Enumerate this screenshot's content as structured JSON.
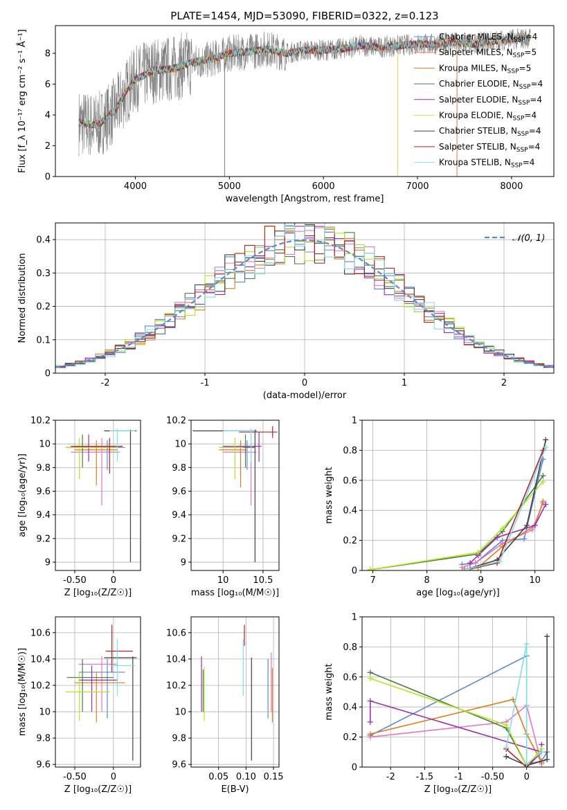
{
  "figure_title": "PLATE=1454, MJD=53090, FIBERID=0322, z=0.123",
  "colors": {
    "Chabrier MILES": "#5b87d6",
    "Salpeter MILES": "#e8734a",
    "Kroupa MILES": "#e07b1a",
    "Chabrier ELODIE": "#4a7a4a",
    "Salpeter ELODIE": "#9b2fae",
    "Kroupa ELODIE": "#d4e157",
    "Chabrier STELIB": "#404040",
    "Salpeter STELIB": "#b22222",
    "Kroupa STELIB": "#80deea",
    "extra_pink": "#e377c2",
    "extra_lime": "#b5e61d",
    "data": "#808080"
  },
  "chart_data": [
    {
      "id": "spectrum",
      "type": "line",
      "title": "PLATE=1454, MJD=53090, FIBERID=0322, z=0.123",
      "xlabel": "wavelength [Angstrom, rest frame]",
      "ylabel": "Flux [f_λ 10⁻¹⁷ erg cm⁻² s⁻¹ Å⁻¹]",
      "xlim": [
        3150,
        8450
      ],
      "ylim": [
        0,
        9.8
      ],
      "xticks": [
        4000,
        5000,
        6000,
        7000,
        8000
      ],
      "yticks": [
        0,
        2,
        4,
        6,
        8
      ],
      "legend_position": "top-right",
      "legend": [
        "Chabrier MILES, N_SSP=4",
        "Salpeter MILES, N_SSP=5",
        "Kroupa MILES, N_SSP=5",
        "Chabrier ELODIE, N_SSP=4",
        "Salpeter ELODIE, N_SSP=4",
        "Kroupa ELODIE, N_SSP=4",
        "Chabrier STELIB, N_SSP=4",
        "Salpeter STELIB, N_SSP=4",
        "Kroupa STELIB, N_SSP=4"
      ],
      "continuum": {
        "x": [
          3400,
          3600,
          3800,
          3900,
          4000,
          4200,
          4400,
          4600,
          4800,
          5000,
          5200,
          5400,
          5600,
          5800,
          6000,
          6200,
          6400,
          6600,
          6800,
          7000,
          7200,
          7400,
          7600,
          7800,
          8000,
          8200
        ],
        "y": [
          3.5,
          3.3,
          4.4,
          5.5,
          6.3,
          6.9,
          7.0,
          7.4,
          7.6,
          8.0,
          8.1,
          8.3,
          8.0,
          8.2,
          8.2,
          8.3,
          8.5,
          8.4,
          8.5,
          8.6,
          8.6,
          8.7,
          8.6,
          8.8,
          8.9,
          9.0
        ]
      }
    },
    {
      "id": "residuals",
      "type": "step",
      "xlabel": "(data-model)/error",
      "ylabel": "Normed distribution",
      "xlim": [
        -2.5,
        2.5
      ],
      "ylim": [
        0,
        0.45
      ],
      "xticks": [
        -2,
        -1,
        0,
        1,
        2
      ],
      "yticks": [
        0.0,
        0.1,
        0.2,
        0.3,
        0.4
      ],
      "legend": [
        "𝒩(0, 1)"
      ],
      "legend_position": "top-right",
      "gaussian": {
        "mean": 0,
        "sigma": 1
      },
      "bins": [
        -2.5,
        2.5,
        50
      ]
    },
    {
      "id": "age_vs_Z",
      "type": "errorbar",
      "xlabel": "Z [log₁₀(Z/Z☉)]",
      "ylabel": "age  [log₁₀(age/yr)]",
      "xlim": [
        -0.75,
        0.35
      ],
      "ylim": [
        8.93,
        10.2
      ],
      "xticks": [
        -0.5,
        0.0
      ],
      "yticks": [
        9.0,
        9.2,
        9.4,
        9.6,
        9.8,
        10.0,
        10.2
      ],
      "points": [
        {
          "x": -0.08,
          "y": 9.97,
          "xlo": -0.62,
          "xhi": 0.15,
          "ylo": 9.78,
          "yhi": 10.03
        },
        {
          "x": -0.15,
          "y": 9.93,
          "xlo": -0.55,
          "xhi": 0.08,
          "ylo": 9.48,
          "yhi": 10.05
        },
        {
          "x": -0.22,
          "y": 9.95,
          "xlo": -0.5,
          "xhi": 0.05,
          "ylo": 9.65,
          "yhi": 10.03
        },
        {
          "x": -0.4,
          "y": 9.97,
          "xlo": -0.58,
          "xhi": 0.03,
          "ylo": 9.8,
          "yhi": 10.08
        },
        {
          "x": -0.32,
          "y": 9.98,
          "xlo": -0.5,
          "xhi": 0.1,
          "ylo": 9.85,
          "yhi": 10.08
        },
        {
          "x": -0.44,
          "y": 9.97,
          "xlo": -0.62,
          "xhi": 0.05,
          "ylo": 9.7,
          "yhi": 10.05
        },
        {
          "x": 0.22,
          "y": 10.11,
          "xlo": -0.12,
          "xhi": 0.3,
          "ylo": 9.0,
          "yhi": 10.12
        },
        {
          "x": -0.05,
          "y": 9.98,
          "xlo": -0.55,
          "xhi": 0.12,
          "ylo": 9.75,
          "yhi": 10.05
        },
        {
          "x": 0.05,
          "y": 10.11,
          "xlo": -0.05,
          "xhi": 0.28,
          "ylo": 9.85,
          "yhi": 10.13
        }
      ]
    },
    {
      "id": "age_vs_mass",
      "type": "errorbar",
      "xlabel": "mass [log₁₀(M/M☉)]",
      "ylabel": "",
      "xlim": [
        9.6,
        10.7
      ],
      "ylim": [
        8.93,
        10.2
      ],
      "xticks": [
        10.0,
        10.5
      ],
      "yticks": [
        9.0,
        9.2,
        9.4,
        9.6,
        9.8,
        10.0,
        10.2
      ],
      "points": [
        {
          "x": 10.3,
          "y": 9.97,
          "xlo": 9.95,
          "xhi": 10.4,
          "ylo": 9.78,
          "yhi": 10.03
        },
        {
          "x": 10.35,
          "y": 9.93,
          "xlo": 10.0,
          "xhi": 10.42,
          "ylo": 9.48,
          "yhi": 10.05
        },
        {
          "x": 10.22,
          "y": 9.95,
          "xlo": 9.95,
          "xhi": 10.3,
          "ylo": 9.63,
          "yhi": 10.03
        },
        {
          "x": 10.28,
          "y": 9.97,
          "xlo": 10.0,
          "xhi": 10.4,
          "ylo": 9.8,
          "yhi": 10.08
        },
        {
          "x": 10.45,
          "y": 9.98,
          "xlo": 10.0,
          "xhi": 10.48,
          "ylo": 9.85,
          "yhi": 10.1
        },
        {
          "x": 10.15,
          "y": 9.97,
          "xlo": 9.95,
          "xhi": 10.25,
          "ylo": 9.7,
          "yhi": 10.05
        },
        {
          "x": 10.4,
          "y": 10.11,
          "xlo": 9.62,
          "xhi": 10.42,
          "ylo": 9.0,
          "yhi": 10.12
        },
        {
          "x": 10.62,
          "y": 10.1,
          "xlo": 10.2,
          "xhi": 10.68,
          "ylo": 10.05,
          "yhi": 10.15
        },
        {
          "x": 10.35,
          "y": 10.11,
          "xlo": 10.0,
          "xhi": 10.4,
          "ylo": 9.85,
          "yhi": 10.13
        }
      ]
    },
    {
      "id": "massweight_vs_age",
      "type": "line",
      "xlabel": "age  [log₁₀(age/yr)]",
      "ylabel": "mass weight",
      "xlim": [
        6.8,
        10.35
      ],
      "ylim": [
        0,
        1.0
      ],
      "xticks": [
        7,
        8,
        9,
        10
      ],
      "yticks": [
        0.0,
        0.2,
        0.4,
        0.6,
        0.8,
        1.0
      ],
      "series": [
        {
          "x": [
            8.65,
            8.9,
            9.4,
            9.8,
            10.15
          ],
          "y": [
            0.04,
            0.05,
            0.2,
            0.21,
            0.74
          ]
        },
        {
          "x": [
            8.65,
            8.9,
            9.4,
            9.95,
            10.15
          ],
          "y": [
            0.02,
            0.05,
            0.18,
            0.27,
            0.45
          ]
        },
        {
          "x": [
            8.7,
            8.95,
            9.4,
            10.0,
            10.15
          ],
          "y": [
            0.01,
            0.02,
            0.16,
            0.3,
            0.46
          ]
        },
        {
          "x": [
            6.95,
            8.95,
            9.4,
            10.15
          ],
          "y": [
            0.005,
            0.11,
            0.26,
            0.63
          ]
        },
        {
          "x": [
            8.8,
            8.95,
            9.3,
            10.0,
            10.2
          ],
          "y": [
            0.05,
            0.1,
            0.22,
            0.3,
            0.44
          ]
        },
        {
          "x": [
            6.95,
            8.95,
            9.4,
            10.15
          ],
          "y": [
            0.005,
            0.12,
            0.28,
            0.59
          ]
        },
        {
          "x": [
            8.75,
            9.3,
            9.85,
            10.2
          ],
          "y": [
            0.01,
            0.07,
            0.3,
            0.87
          ]
        },
        {
          "x": [
            8.8,
            9.3,
            10.15
          ],
          "y": [
            0.01,
            0.05,
            0.8
          ]
        },
        {
          "x": [
            8.75,
            9.35,
            10.2
          ],
          "y": [
            0.01,
            0.06,
            0.82
          ]
        }
      ]
    },
    {
      "id": "mass_vs_Z",
      "type": "errorbar",
      "xlabel": "Z [log₁₀(Z/Z☉)]",
      "ylabel": "mass [log₁₀(M/M☉)]",
      "xlim": [
        -0.75,
        0.35
      ],
      "ylim": [
        9.58,
        10.72
      ],
      "xticks": [
        -0.5,
        0.0
      ],
      "yticks": [
        9.6,
        9.8,
        10.0,
        10.2,
        10.4,
        10.6
      ],
      "points": [
        {
          "x": -0.08,
          "y": 10.3,
          "xlo": -0.45,
          "xhi": 0.15,
          "ylo": 9.95,
          "yhi": 10.4
        },
        {
          "x": -0.15,
          "y": 10.36,
          "xlo": -0.45,
          "xhi": 0.05,
          "ylo": 10.0,
          "yhi": 10.42
        },
        {
          "x": -0.22,
          "y": 10.22,
          "xlo": -0.5,
          "xhi": 0.15,
          "ylo": 9.92,
          "yhi": 10.3
        },
        {
          "x": -0.4,
          "y": 10.26,
          "xlo": -0.6,
          "xhi": 0.0,
          "ylo": 10.0,
          "yhi": 10.4
        },
        {
          "x": -0.28,
          "y": 10.24,
          "xlo": -0.45,
          "xhi": 0.05,
          "ylo": 10.0,
          "yhi": 10.35
        },
        {
          "x": -0.44,
          "y": 10.15,
          "xlo": -0.62,
          "xhi": -0.05,
          "ylo": 9.93,
          "yhi": 10.3
        },
        {
          "x": 0.25,
          "y": 10.41,
          "xlo": -0.12,
          "xhi": 0.3,
          "ylo": 9.63,
          "yhi": 10.42
        },
        {
          "x": -0.02,
          "y": 10.46,
          "xlo": -0.1,
          "xhi": 0.25,
          "ylo": 10.3,
          "yhi": 10.66
        },
        {
          "x": 0.05,
          "y": 10.35,
          "xlo": -0.05,
          "xhi": 0.28,
          "ylo": 10.12,
          "yhi": 10.55
        }
      ]
    },
    {
      "id": "mass_vs_EBV",
      "type": "errorbar",
      "xlabel": "E(B-V)",
      "ylabel": "",
      "xlim": [
        0.0,
        0.16
      ],
      "ylim": [
        9.58,
        10.72
      ],
      "xticks": [
        0.05,
        0.1,
        0.15
      ],
      "yticks": [
        9.6,
        9.8,
        10.0,
        10.2,
        10.4,
        10.6
      ],
      "points": [
        {
          "x": 0.14,
          "ylo": 9.95,
          "yhi": 10.4
        },
        {
          "x": 0.146,
          "ylo": 10.0,
          "yhi": 10.45
        },
        {
          "x": 0.148,
          "ylo": 9.92,
          "yhi": 10.33
        },
        {
          "x": 0.022,
          "ylo": 10.0,
          "yhi": 10.32
        },
        {
          "x": 0.019,
          "ylo": 10.0,
          "yhi": 10.42
        },
        {
          "x": 0.024,
          "ylo": 9.93,
          "yhi": 10.34
        },
        {
          "x": 0.11,
          "ylo": 9.63,
          "yhi": 10.41
        },
        {
          "x": 0.097,
          "ylo": 10.5,
          "yhi": 10.66
        },
        {
          "x": 0.095,
          "ylo": 10.12,
          "yhi": 10.55
        }
      ]
    },
    {
      "id": "massweight_vs_Z",
      "type": "line",
      "xlabel": "Z [log₁₀(Z/Z☉)]",
      "ylabel": "mass weight",
      "xlim": [
        -2.42,
        0.4
      ],
      "ylim": [
        0,
        1.0
      ],
      "xticks": [
        -2.0,
        -1.5,
        -1.0,
        -0.5,
        0.0
      ],
      "yticks": [
        0.0,
        0.2,
        0.4,
        0.6,
        0.8,
        1.0
      ],
      "series": [
        {
          "x": [
            -2.3,
            0.0,
            0.0,
            0.22,
            0.3
          ],
          "y": [
            0.21,
            0.74,
            0.02,
            0.04,
            0.1
          ]
        },
        {
          "x": [
            -2.3,
            -0.3,
            0.0,
            0.22
          ],
          "y": [
            0.2,
            0.3,
            0.41,
            0.02
          ]
        },
        {
          "x": [
            -2.3,
            -0.2,
            0.0,
            0.22
          ],
          "y": [
            0.22,
            0.45,
            0.22,
            0.03
          ]
        },
        {
          "x": [
            -2.3,
            -0.3,
            0.0,
            0.22
          ],
          "y": [
            0.63,
            0.26,
            0.01,
            0.1
          ]
        },
        {
          "x": [
            -2.3,
            -2.3,
            0.22,
            0.22
          ],
          "y": [
            0.3,
            0.44,
            0.1,
            0.15
          ]
        },
        {
          "x": [
            -2.3,
            -0.3,
            0.0,
            0.22
          ],
          "y": [
            0.59,
            0.28,
            0.01,
            0.12
          ]
        },
        {
          "x": [
            -0.3,
            0.0,
            0.3,
            0.3
          ],
          "y": [
            0.07,
            0.01,
            0.05,
            0.87
          ]
        },
        {
          "x": [
            -0.3,
            0.0,
            0.22
          ],
          "y": [
            0.12,
            0.0,
            0.1
          ]
        },
        {
          "x": [
            -0.3,
            0.0,
            0.0,
            0.22
          ],
          "y": [
            0.13,
            0.82,
            0.02,
            0.1
          ]
        }
      ]
    }
  ]
}
